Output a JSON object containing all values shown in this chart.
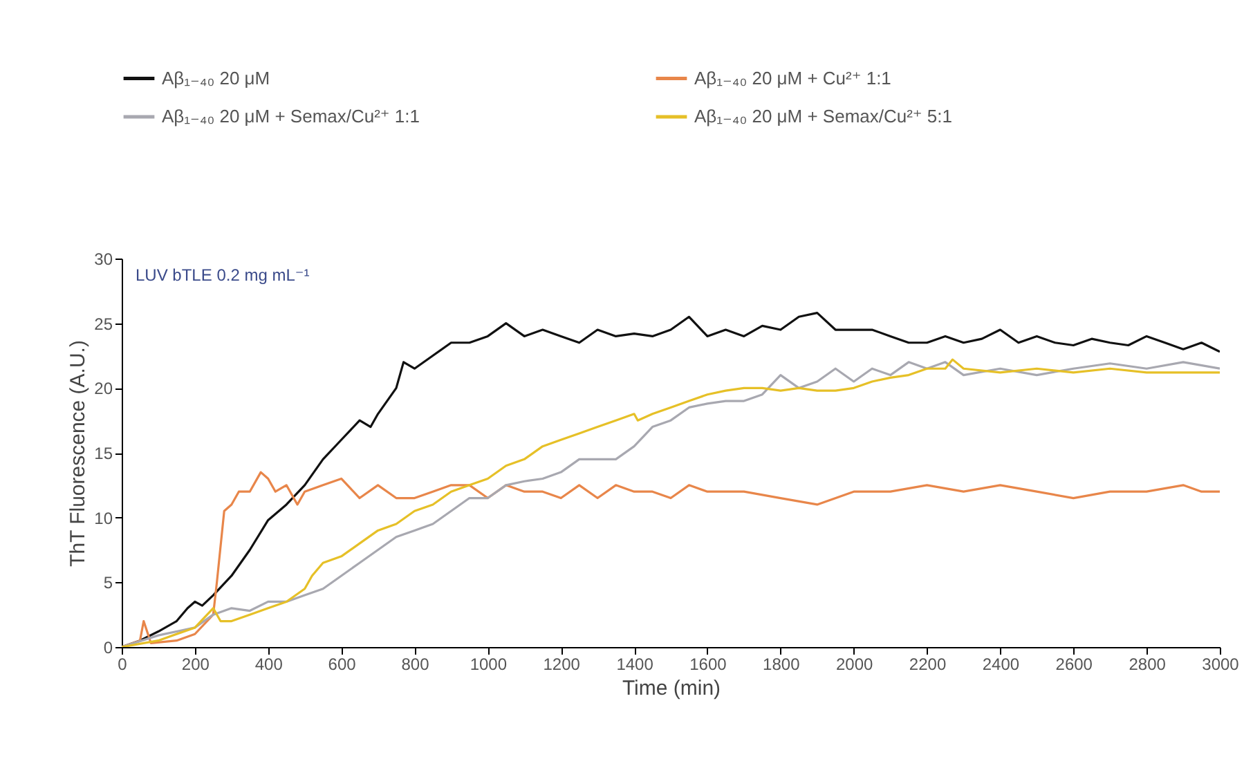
{
  "chart_data": {
    "type": "line",
    "xlabel": "Time (min)",
    "ylabel": "ThT Fluorescence (A.U.)",
    "annotations": [
      "LUV bTLE 0.2 mg mL⁻¹"
    ],
    "xlim": [
      0,
      3000
    ],
    "xticks": [
      0,
      200,
      400,
      600,
      800,
      1000,
      1200,
      1400,
      1600,
      1800,
      2000,
      2200,
      2400,
      2600,
      2800,
      3000
    ],
    "ylim": [
      0,
      30
    ],
    "yticks": [
      0,
      5,
      10,
      15,
      20,
      25,
      30
    ],
    "grid": false,
    "legend": "top",
    "marker": "none",
    "line_style": "solid",
    "series": [
      {
        "name": "Aβ₁₋₄₀ 20 μM",
        "color": "#111111",
        "x": [
          0,
          50,
          100,
          150,
          180,
          200,
          220,
          250,
          300,
          350,
          400,
          450,
          500,
          550,
          600,
          650,
          680,
          700,
          750,
          770,
          800,
          850,
          900,
          950,
          1000,
          1050,
          1100,
          1150,
          1200,
          1250,
          1300,
          1350,
          1400,
          1450,
          1500,
          1550,
          1600,
          1650,
          1700,
          1750,
          1800,
          1850,
          1900,
          1950,
          2000,
          2050,
          2100,
          2150,
          2200,
          2250,
          2300,
          2350,
          2400,
          2450,
          2500,
          2550,
          2600,
          2650,
          2700,
          2750,
          2800,
          2850,
          2900,
          2950,
          3000
        ],
        "values": [
          0,
          0.5,
          1.2,
          2,
          3,
          3.5,
          3.2,
          4,
          5.5,
          7.5,
          9.8,
          11,
          12.5,
          14.5,
          16,
          17.5,
          17,
          18,
          20,
          22,
          21.5,
          22.5,
          23.5,
          23.5,
          24,
          25,
          24,
          24.5,
          24,
          23.5,
          24.5,
          24,
          24.2,
          24,
          24.5,
          25.5,
          24,
          24.5,
          24,
          24.8,
          24.5,
          25.5,
          25.8,
          24.5,
          24.5,
          24.5,
          24,
          23.5,
          23.5,
          24,
          23.5,
          23.8,
          24.5,
          23.5,
          24,
          23.5,
          23.3,
          23.8,
          23.5,
          23.3,
          24,
          23.5,
          23,
          23.5,
          22.8
        ]
      },
      {
        "name": "Aβ₁₋₄₀ 20 μM + Cu²⁺ 1:1",
        "color": "#e8864a",
        "x": [
          0,
          50,
          60,
          80,
          150,
          200,
          250,
          260,
          280,
          300,
          320,
          350,
          380,
          400,
          420,
          450,
          480,
          500,
          550,
          600,
          650,
          700,
          750,
          800,
          850,
          900,
          950,
          1000,
          1050,
          1100,
          1150,
          1200,
          1250,
          1300,
          1350,
          1400,
          1450,
          1500,
          1550,
          1600,
          1700,
          1800,
          1900,
          2000,
          2100,
          2200,
          2300,
          2400,
          2500,
          2600,
          2700,
          2800,
          2900,
          2950,
          3000
        ],
        "values": [
          0,
          0.5,
          2,
          0.3,
          0.5,
          1,
          2.5,
          5,
          10.5,
          11,
          12,
          12,
          13.5,
          13,
          12,
          12.5,
          11,
          12,
          12.5,
          13,
          11.5,
          12.5,
          11.5,
          11.5,
          12,
          12.5,
          12.5,
          11.5,
          12.5,
          12,
          12,
          11.5,
          12.5,
          11.5,
          12.5,
          12,
          12,
          11.5,
          12.5,
          12,
          12,
          11.5,
          11,
          12,
          12,
          12.5,
          12,
          12.5,
          12,
          11.5,
          12,
          12,
          12.5,
          12,
          12
        ]
      },
      {
        "name": "Aβ₁₋₄₀ 20 μM + Semax/Cu²⁺ 1:1",
        "color": "#a8a8b0",
        "x": [
          0,
          100,
          200,
          250,
          300,
          350,
          400,
          450,
          500,
          550,
          600,
          650,
          700,
          750,
          800,
          850,
          900,
          950,
          1000,
          1050,
          1100,
          1150,
          1200,
          1250,
          1300,
          1350,
          1400,
          1450,
          1500,
          1550,
          1600,
          1650,
          1700,
          1750,
          1800,
          1850,
          1900,
          1950,
          2000,
          2050,
          2100,
          2150,
          2200,
          2250,
          2300,
          2400,
          2500,
          2600,
          2700,
          2800,
          2900,
          3000
        ],
        "values": [
          0,
          0.9,
          1.5,
          2.5,
          3,
          2.8,
          3.5,
          3.5,
          4,
          4.5,
          5.5,
          6.5,
          7.5,
          8.5,
          9,
          9.5,
          10.5,
          11.5,
          11.5,
          12.5,
          12.8,
          13,
          13.5,
          14.5,
          14.5,
          14.5,
          15.5,
          17,
          17.5,
          18.5,
          18.8,
          19,
          19,
          19.5,
          21,
          20,
          20.5,
          21.5,
          20.5,
          21.5,
          21,
          22,
          21.5,
          22,
          21,
          21.5,
          21,
          21.5,
          21.9,
          21.5,
          22,
          21.5
        ]
      },
      {
        "name": "Aβ₁₋₄₀ 20 μM + Semax/Cu²⁺ 5:1",
        "color": "#e6c027",
        "x": [
          0,
          100,
          200,
          250,
          270,
          300,
          350,
          400,
          450,
          500,
          520,
          550,
          600,
          650,
          700,
          750,
          800,
          850,
          900,
          950,
          1000,
          1050,
          1100,
          1150,
          1200,
          1250,
          1300,
          1350,
          1400,
          1410,
          1450,
          1500,
          1550,
          1600,
          1650,
          1700,
          1750,
          1800,
          1850,
          1900,
          1950,
          2000,
          2050,
          2100,
          2150,
          2200,
          2250,
          2270,
          2300,
          2400,
          2500,
          2600,
          2700,
          2800,
          2900,
          3000
        ],
        "values": [
          0,
          0.5,
          1.5,
          3,
          2,
          2,
          2.5,
          3,
          3.5,
          4.5,
          5.5,
          6.5,
          7,
          8,
          9,
          9.5,
          10.5,
          11,
          12,
          12.5,
          13,
          14,
          14.5,
          15.5,
          16,
          16.5,
          17,
          17.5,
          18,
          17.5,
          18,
          18.5,
          19,
          19.5,
          19.8,
          20,
          20,
          19.8,
          20,
          19.8,
          19.8,
          20,
          20.5,
          20.8,
          21,
          21.5,
          21.5,
          22.2,
          21.5,
          21.2,
          21.5,
          21.2,
          21.5,
          21.2,
          21.2,
          21.2
        ]
      }
    ]
  }
}
